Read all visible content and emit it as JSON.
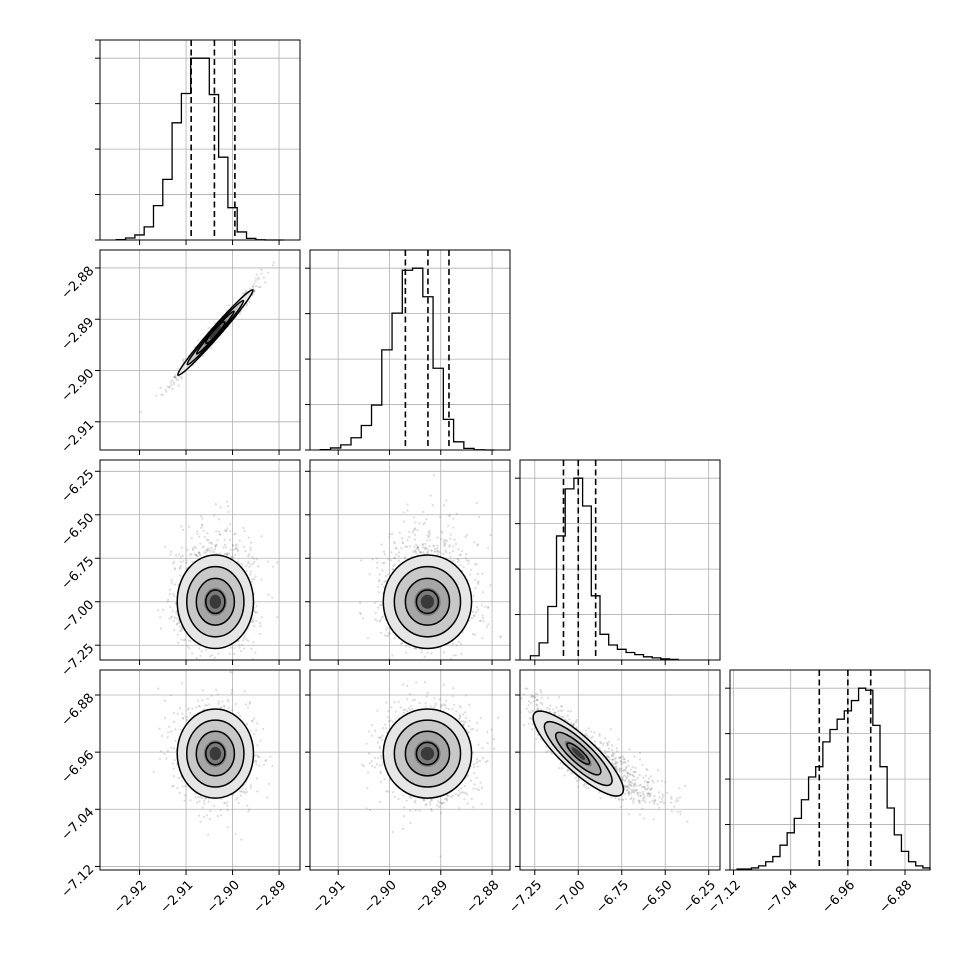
{
  "chart_data": {
    "type": "corner",
    "grid": true,
    "n_params": 4,
    "params": [
      {
        "range": [
          -2.9285,
          -2.8855
        ],
        "ticks": [
          -2.92,
          -2.91,
          -2.9,
          -2.89
        ],
        "tick_labels": [
          "−2.92",
          "−2.91",
          "−2.90",
          "−2.89"
        ],
        "quantiles": [
          -2.9089,
          -2.9039,
          -2.8995
        ],
        "mean": -2.9037,
        "sd": 0.004,
        "hist": {
          "edges": [
            -2.925,
            -2.923,
            -2.921,
            -2.919,
            -2.917,
            -2.915,
            -2.913,
            -2.911,
            -2.909,
            -2.907,
            -2.905,
            -2.903,
            -2.901,
            -2.899,
            -2.897,
            -2.895,
            -2.893,
            -2.891,
            -2.889
          ],
          "counts": [
            0.2,
            1.0,
            2.5,
            6.5,
            17.0,
            30.0,
            58.0,
            72.5,
            90.0,
            90.0,
            72.0,
            41.0,
            16.0,
            4.0,
            0.8,
            0.1,
            0.0,
            0.0
          ]
        }
      },
      {
        "range": [
          -2.9155,
          -2.8765
        ],
        "ticks": [
          -2.91,
          -2.9,
          -2.89,
          -2.88
        ],
        "tick_labels": [
          "−2.91",
          "−2.90",
          "−2.89",
          "−2.88"
        ],
        "quantiles": [
          -2.8969,
          -2.8925,
          -2.8884
        ],
        "mean": -2.8926,
        "sd": 0.0042,
        "hist": {
          "edges": [
            -2.9135,
            -2.9115,
            -2.9095,
            -2.9075,
            -2.9055,
            -2.9035,
            -2.9015,
            -2.8995,
            -2.8975,
            -2.8955,
            -2.8935,
            -2.8915,
            -2.8895,
            -2.8875,
            -2.8855,
            -2.8835,
            -2.8815,
            -2.8795
          ],
          "counts": [
            0.2,
            1.0,
            2.5,
            6.0,
            12.0,
            22.0,
            49.0,
            67.0,
            88.0,
            89.0,
            75.0,
            40.0,
            15.0,
            4.0,
            0.8,
            0.1,
            0.0
          ]
        }
      },
      {
        "range": [
          -7.335,
          -6.185
        ],
        "ticks": [
          -7.25,
          -7.0,
          -6.75,
          -6.5,
          -6.25
        ],
        "tick_labels": [
          "−7.25",
          "−7.00",
          "−6.75",
          "−6.50",
          "−6.25"
        ],
        "quantiles": [
          -7.085,
          -7.0,
          -6.9
        ],
        "mean": -7.0,
        "sd": 0.12,
        "hist": {
          "edges": [
            -7.275,
            -7.225,
            -7.175,
            -7.125,
            -7.075,
            -7.025,
            -6.975,
            -6.925,
            -6.875,
            -6.825,
            -6.775,
            -6.725,
            -6.675,
            -6.625,
            -6.575,
            -6.525,
            -6.475,
            -6.425
          ],
          "counts": [
            2.0,
            8.0,
            25.0,
            58.0,
            80.0,
            85.0,
            72.0,
            30.0,
            12.0,
            7.0,
            5.0,
            3.5,
            2.5,
            1.5,
            1.0,
            0.5,
            0.3
          ]
        }
      },
      {
        "range": [
          -7.125,
          -6.845
        ],
        "ticks": [
          -7.12,
          -7.04,
          -6.96,
          -6.88
        ],
        "tick_labels": [
          "−7.12",
          "−7.04",
          "−6.96",
          "−6.88"
        ],
        "quantiles": [
          -7.0,
          -6.96,
          -6.928
        ],
        "mean": -6.962,
        "sd": 0.032,
        "hist": {
          "edges": [
            -7.115,
            -7.105,
            -7.095,
            -7.085,
            -7.075,
            -7.065,
            -7.055,
            -7.045,
            -7.035,
            -7.025,
            -7.015,
            -7.005,
            -6.995,
            -6.985,
            -6.975,
            -6.965,
            -6.955,
            -6.945,
            -6.935,
            -6.925,
            -6.915,
            -6.905,
            -6.895,
            -6.885,
            -6.875,
            -6.865,
            -6.855,
            -6.845
          ],
          "counts": [
            0.5,
            0.5,
            1.0,
            2.0,
            4.0,
            6.5,
            12.0,
            18.0,
            25.0,
            34.0,
            45.0,
            50.0,
            62.0,
            68.0,
            73.0,
            77.0,
            82.0,
            88.0,
            87.0,
            70.0,
            50.0,
            30.0,
            17.0,
            9.0,
            4.0,
            2.0,
            1.0
          ]
        }
      }
    ],
    "pairs": [
      {
        "row": 1,
        "col": 0,
        "rho": 0.985
      },
      {
        "row": 2,
        "col": 0,
        "rho": 0.05
      },
      {
        "row": 2,
        "col": 1,
        "rho": 0.05
      },
      {
        "row": 3,
        "col": 0,
        "rho": -0.05
      },
      {
        "row": 3,
        "col": 1,
        "rho": -0.05
      },
      {
        "row": 3,
        "col": 2,
        "rho": -0.85
      }
    ],
    "contour_levels_sigma": [
      0.5,
      1.0,
      1.5,
      2.0
    ]
  }
}
